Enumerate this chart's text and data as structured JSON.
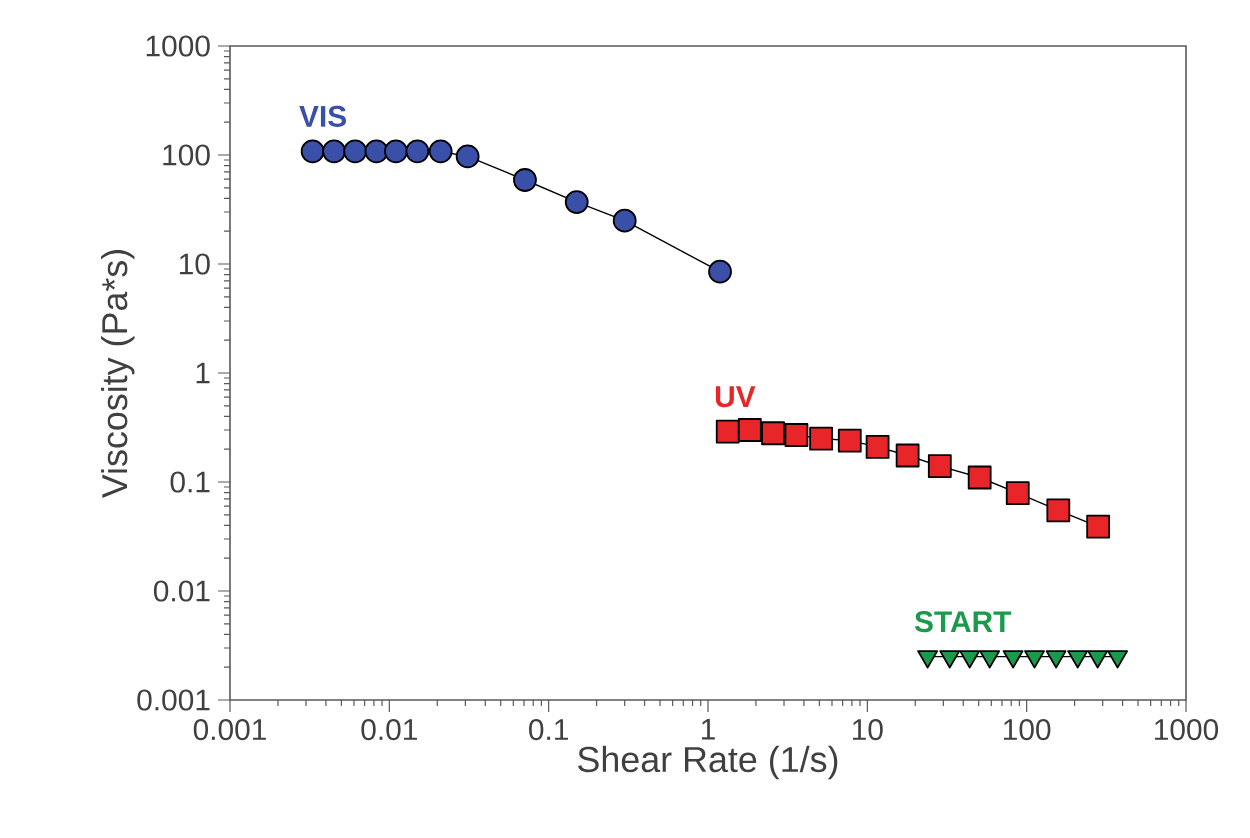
{
  "chart_data": {
    "type": "line",
    "xlabel": "Shear Rate (1/s)",
    "ylabel": "Viscosity (Pa*s)",
    "log": "xy",
    "xlim": [
      0.001,
      1000
    ],
    "ylim": [
      0.001,
      1000
    ],
    "xticks": [
      0.001,
      0.01,
      0.1,
      1,
      10,
      100,
      1000
    ],
    "yticks": [
      0.001,
      0.01,
      0.1,
      1,
      10,
      100,
      1000
    ],
    "grid": false,
    "line_style": "solid",
    "series": [
      {
        "name": "VIS",
        "color": "#3a4fa8",
        "marker": "circle",
        "x": [
          0.0033,
          0.0045,
          0.0061,
          0.0083,
          0.011,
          0.015,
          0.021,
          0.031,
          0.071,
          0.15,
          0.3,
          1.19
        ],
        "values": [
          108,
          108,
          108,
          108,
          108,
          108,
          108,
          97,
          59,
          37,
          25,
          8.5
        ]
      },
      {
        "name": "UV",
        "color": "#e8262a",
        "marker": "square",
        "x": [
          1.33,
          1.83,
          2.56,
          3.59,
          5.13,
          7.76,
          11.6,
          17.9,
          28.5,
          50.7,
          87.9,
          158,
          281
        ],
        "values": [
          0.29,
          0.3,
          0.28,
          0.27,
          0.25,
          0.24,
          0.21,
          0.175,
          0.14,
          0.11,
          0.079,
          0.055,
          0.039
        ]
      },
      {
        "name": "START",
        "color": "#1a9a4a",
        "marker": "triangle",
        "x": [
          23.9,
          32.9,
          43.9,
          58.6,
          82.2,
          112,
          153,
          209,
          279,
          372
        ],
        "values": [
          0.0025,
          0.0025,
          0.0025,
          0.0025,
          0.0025,
          0.0025,
          0.0025,
          0.0025,
          0.0025,
          0.0025
        ]
      }
    ]
  }
}
